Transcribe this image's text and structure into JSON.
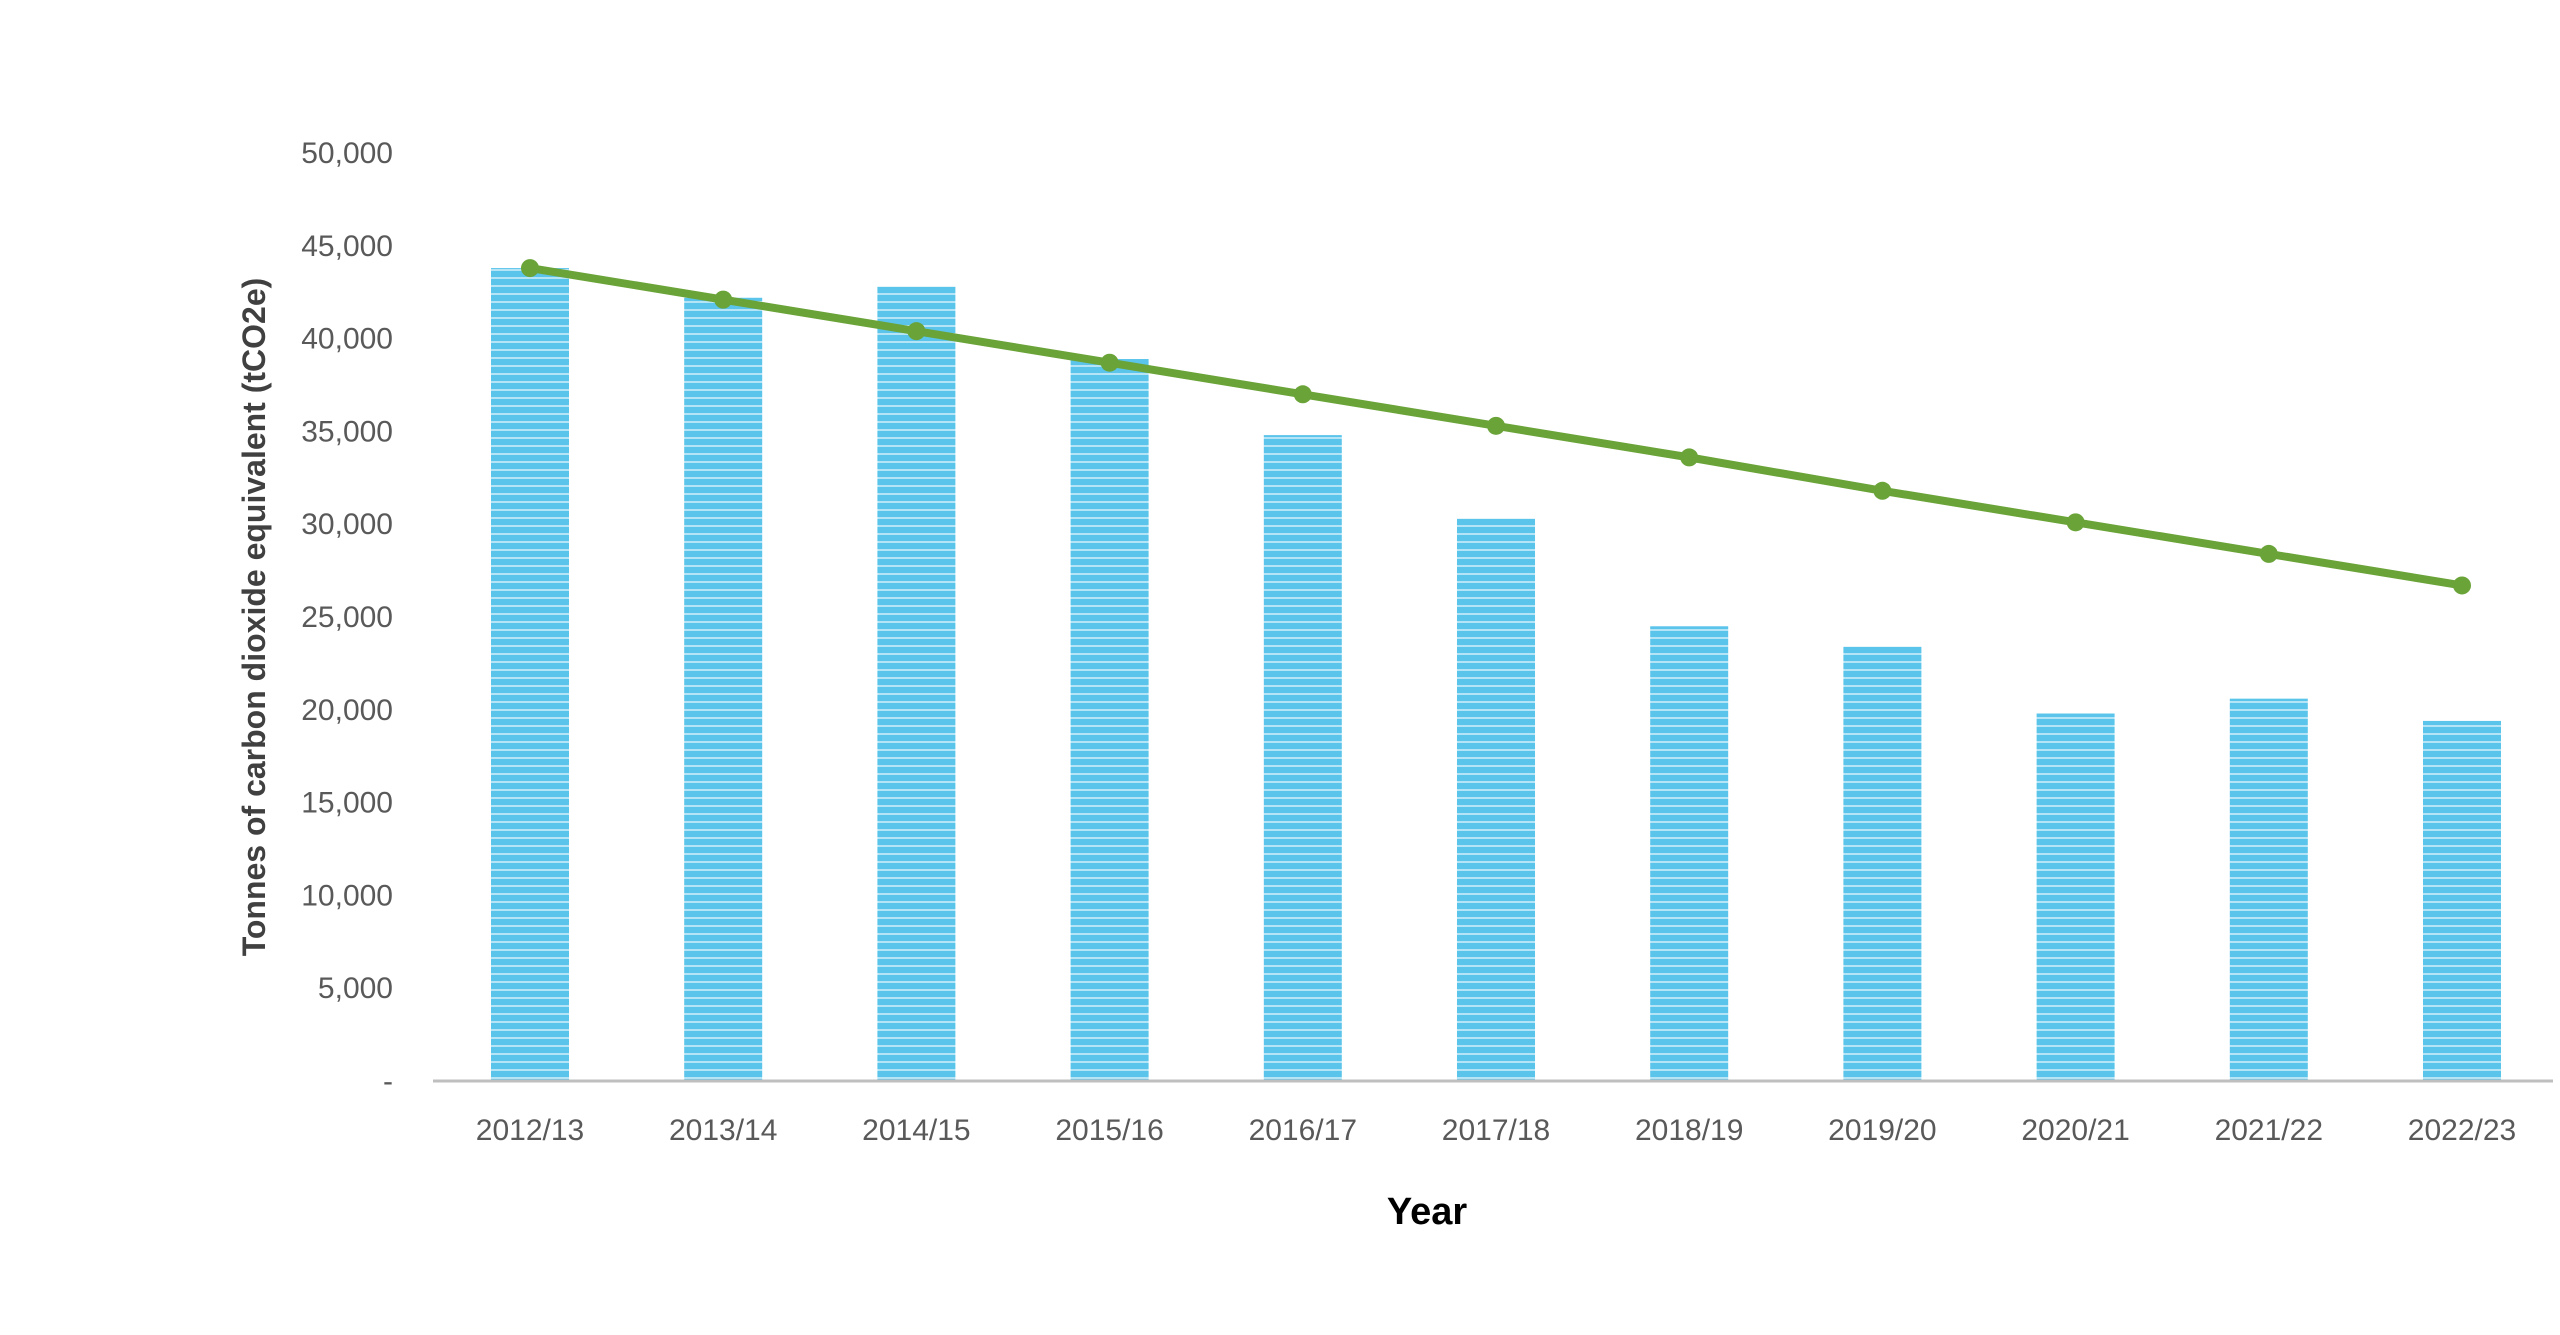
{
  "chart_data": {
    "type": "bar",
    "categories": [
      "2012/13",
      "2013/14",
      "2014/15",
      "2015/16",
      "2016/17",
      "2017/18",
      "2018/19",
      "2019/20",
      "2020/21",
      "2021/22",
      "2022/23"
    ],
    "series": [
      {
        "values": [
          43800,
          42200,
          42800,
          38900,
          34800,
          30300,
          24500,
          23400,
          19800,
          20600,
          19400
        ]
      },
      {
        "type": "line",
        "values": [
          43800,
          42100,
          40400,
          38700,
          37000,
          35300,
          33600,
          31800,
          30100,
          28400,
          26700
        ]
      }
    ],
    "xlabel": "Year",
    "ylabel": "Tonnes of carbon dioxide equivalent (tCO2e)",
    "ylim": [
      0,
      50000
    ],
    "yticks": [
      0,
      5000,
      10000,
      15000,
      20000,
      25000,
      30000,
      35000,
      40000,
      45000,
      50000
    ],
    "ytick_labels": [
      "-",
      "5,000",
      "10,000",
      "15,000",
      "20,000",
      "25,000",
      "30,000",
      "35,000",
      "40,000",
      "45,000",
      "50,000"
    ],
    "grid": false,
    "legend": "none",
    "colors": {
      "bars": "#5bc4ea",
      "bar_stripe": "#ffffff",
      "line": "#6aa338",
      "axis": "#bfbfbf"
    }
  }
}
